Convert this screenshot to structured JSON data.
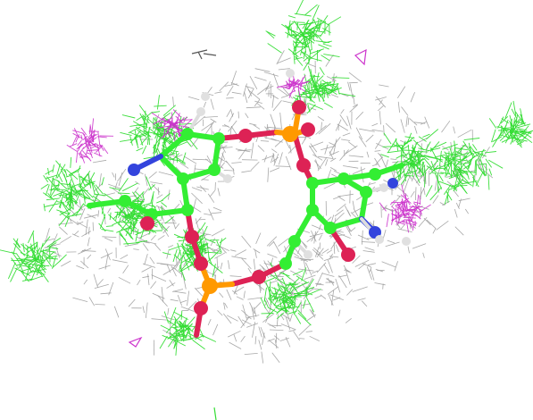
{
  "scene": {
    "background": "#ffffff",
    "colors": {
      "density_gray": "#9a9a9a",
      "density_green": "#33dd33",
      "density_magenta": "#cc33cc",
      "carbon": "#33ee33",
      "oxygen": "#dd2255",
      "phosphorus": "#ff9900",
      "nitrogen": "#3344dd",
      "hydrogen": "#e0e0e0"
    }
  }
}
